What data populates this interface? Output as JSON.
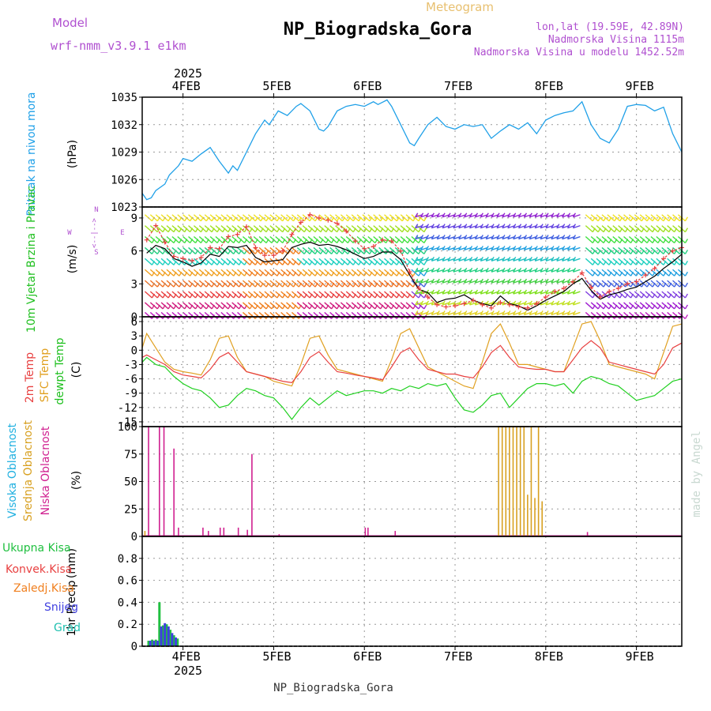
{
  "header": {
    "meteogram_label": "Meteogram",
    "model_label": "Model",
    "model_value": "wrf-nmm_v3.9.1 e1km",
    "station_title": "NP_Biogradska_Gora",
    "lonlat": "lon,lat (19.59E, 42.89N)",
    "elevation": "Nadmorska Visina 1115m",
    "model_elevation": "Nadmorska Visina u modelu 1452.52m",
    "footer_station": "NP_Biogradska_Gora",
    "credit": "made by Angel"
  },
  "colors": {
    "pressure": "#1fa0e8",
    "temp_2m": "#e84040",
    "temp_sfc": "#e0a020",
    "dewpoint": "#20d020",
    "cloud_high": "#20b0e0",
    "cloud_mid": "#d8a020",
    "cloud_low": "#d02090",
    "precip_total": "#20c040",
    "precip_conv": "#e84040",
    "precip_frz": "#f08020",
    "precip_snow": "#4040e0",
    "precip_grad": "#20c0b0",
    "wind_speed": "#000000",
    "wind_gust": "#e84040",
    "purple": "#b050d0"
  },
  "chart_data": [
    {
      "type": "line",
      "panel": "pressure",
      "ylabel": "Pritisak na nivou mora",
      "unit": "(hPa)",
      "ylim": [
        1023,
        1035
      ],
      "yticks": [
        "1023",
        "1026",
        "1029",
        "1032",
        "1035"
      ],
      "xlim": [
        3.55,
        9.5
      ],
      "top_axis_year": "2025",
      "x_tick_labels": [
        "4FEB",
        "5FEB",
        "6FEB",
        "7FEB",
        "8FEB",
        "9FEB"
      ],
      "grid": true,
      "series": [
        {
          "x": [
            3.55,
            3.6,
            3.65,
            3.7,
            3.8,
            3.85,
            3.95,
            4.0,
            4.1,
            4.2,
            4.3,
            4.4,
            4.5,
            4.55,
            4.6,
            4.7,
            4.8,
            4.9,
            4.95,
            5.05,
            5.15,
            5.25,
            5.3,
            5.4,
            5.5,
            5.55,
            5.6,
            5.7,
            5.8,
            5.9,
            6.0,
            6.1,
            6.15,
            6.25,
            6.3,
            6.4,
            6.5,
            6.55,
            6.6,
            6.7,
            6.8,
            6.9,
            7.0,
            7.1,
            7.2,
            7.3,
            7.4,
            7.5,
            7.6,
            7.7,
            7.8,
            7.9,
            8.0,
            8.1,
            8.2,
            8.3,
            8.4,
            8.5,
            8.6,
            8.7,
            8.8,
            8.9,
            9.0,
            9.1,
            9.2,
            9.3,
            9.4,
            9.5
          ],
          "values": [
            1024.5,
            1023.8,
            1024.0,
            1024.8,
            1025.5,
            1026.5,
            1027.5,
            1028.3,
            1028.0,
            1028.8,
            1029.5,
            1028.0,
            1026.7,
            1027.5,
            1027.0,
            1029.0,
            1031.0,
            1032.5,
            1032.0,
            1033.5,
            1033.0,
            1034.0,
            1034.3,
            1033.5,
            1031.5,
            1031.3,
            1031.8,
            1033.5,
            1034.0,
            1034.2,
            1034.0,
            1034.5,
            1034.2,
            1034.7,
            1034.0,
            1032.0,
            1030.0,
            1029.7,
            1030.5,
            1032.0,
            1032.8,
            1031.8,
            1031.5,
            1032.0,
            1031.8,
            1032.0,
            1030.5,
            1031.3,
            1032.0,
            1031.5,
            1032.2,
            1031.0,
            1032.5,
            1033.0,
            1033.3,
            1033.5,
            1034.5,
            1032.0,
            1030.5,
            1030.0,
            1031.5,
            1034.0,
            1034.2,
            1034.1,
            1033.5,
            1033.9,
            1031.0,
            1029.0
          ]
        }
      ]
    },
    {
      "type": "line",
      "panel": "wind",
      "ylabel": "10m Vjetar Brzina i Pravac",
      "unit": "(m/s)",
      "ylim": [
        0,
        10
      ],
      "yticks": [
        "0",
        "3",
        "6",
        "9"
      ],
      "direction_key": [
        "N",
        "<--|-->",
        "S",
        "W",
        "E",
        "α"
      ],
      "grid": true,
      "series": [
        {
          "name": "speed",
          "x": [
            3.6,
            3.7,
            3.8,
            3.9,
            4.0,
            4.1,
            4.2,
            4.3,
            4.4,
            4.5,
            4.6,
            4.7,
            4.8,
            4.9,
            5.0,
            5.1,
            5.2,
            5.3,
            5.4,
            5.5,
            5.6,
            5.7,
            5.8,
            5.9,
            6.0,
            6.1,
            6.2,
            6.3,
            6.4,
            6.5,
            6.6,
            6.7,
            6.8,
            6.9,
            7.0,
            7.1,
            7.2,
            7.3,
            7.4,
            7.5,
            7.6,
            7.7,
            7.8,
            7.9,
            8.0,
            8.1,
            8.2,
            8.3,
            8.4,
            8.5,
            8.6,
            8.7,
            8.8,
            8.9,
            9.0,
            9.1,
            9.2,
            9.3,
            9.4,
            9.5
          ],
          "values": [
            5.8,
            6.5,
            6.2,
            5.3,
            5.0,
            4.6,
            4.9,
            5.7,
            5.5,
            6.4,
            6.3,
            6.5,
            5.4,
            5.0,
            5.1,
            5.2,
            6.3,
            6.6,
            6.8,
            6.5,
            6.6,
            6.4,
            6.1,
            5.7,
            5.3,
            5.5,
            5.9,
            5.9,
            5.2,
            3.8,
            2.5,
            2.2,
            1.3,
            1.6,
            1.7,
            2.0,
            1.5,
            1.2,
            1.0,
            1.9,
            1.2,
            1.0,
            0.6,
            1.0,
            1.5,
            1.9,
            2.3,
            3.0,
            3.5,
            2.4,
            1.6,
            2.0,
            2.2,
            2.5,
            2.7,
            3.2,
            3.7,
            4.4,
            5.0,
            5.7
          ]
        },
        {
          "name": "gust",
          "x": [
            3.6,
            3.7,
            3.8,
            3.9,
            4.0,
            4.1,
            4.2,
            4.3,
            4.4,
            4.5,
            4.6,
            4.7,
            4.8,
            4.9,
            5.0,
            5.1,
            5.2,
            5.3,
            5.4,
            5.5,
            5.6,
            5.7,
            5.8,
            5.9,
            6.0,
            6.1,
            6.2,
            6.3,
            6.4,
            6.5,
            6.6,
            6.7,
            6.8,
            6.9,
            7.0,
            7.1,
            7.2,
            7.3,
            7.4,
            7.5,
            7.6,
            7.7,
            7.8,
            7.9,
            8.0,
            8.1,
            8.2,
            8.3,
            8.4,
            8.5,
            8.6,
            8.7,
            8.8,
            8.9,
            9.0,
            9.1,
            9.2,
            9.3,
            9.4,
            9.5
          ],
          "values": [
            7.0,
            8.3,
            6.8,
            5.5,
            5.3,
            5.1,
            5.4,
            6.3,
            6.2,
            7.3,
            7.5,
            8.2,
            6.3,
            5.6,
            5.6,
            6.0,
            7.5,
            8.6,
            9.3,
            9.0,
            8.8,
            8.5,
            7.8,
            6.9,
            6.2,
            6.4,
            7.0,
            6.9,
            6.0,
            4.1,
            2.6,
            1.8,
            1.1,
            0.9,
            1.0,
            1.2,
            1.5,
            1.1,
            0.8,
            1.3,
            1.1,
            0.9,
            0.8,
            1.2,
            1.8,
            2.3,
            2.6,
            3.2,
            4.0,
            2.7,
            1.8,
            2.3,
            2.6,
            3.0,
            3.2,
            3.8,
            4.4,
            5.3,
            6.0,
            6.3
          ]
        }
      ]
    },
    {
      "type": "line",
      "panel": "temperature",
      "ylabel_2m": "2m Temp",
      "ylabel_sfc": "SFC Temp",
      "ylabel_dew": "dewpt Temp",
      "unit": "(C)",
      "ylim": [
        -16,
        7
      ],
      "yticks": [
        "-15",
        "-12",
        "-9",
        "-6",
        "-3",
        "0",
        "3",
        "6"
      ],
      "grid": true,
      "series": [
        {
          "name": "2m Temp",
          "x": [
            3.55,
            3.6,
            3.7,
            3.8,
            3.9,
            4.0,
            4.1,
            4.2,
            4.3,
            4.4,
            4.5,
            4.6,
            4.7,
            4.8,
            4.9,
            5.0,
            5.1,
            5.2,
            5.3,
            5.4,
            5.5,
            5.6,
            5.7,
            5.8,
            5.9,
            6.0,
            6.1,
            6.2,
            6.3,
            6.4,
            6.5,
            6.6,
            6.7,
            6.8,
            6.9,
            7.0,
            7.1,
            7.2,
            7.3,
            7.4,
            7.5,
            7.6,
            7.7,
            7.8,
            7.9,
            8.0,
            8.1,
            8.2,
            8.3,
            8.4,
            8.5,
            8.6,
            8.7,
            8.8,
            8.9,
            9.0,
            9.1,
            9.2,
            9.3,
            9.4,
            9.5
          ],
          "values": [
            -1.5,
            -1.0,
            -2.0,
            -3.0,
            -4.5,
            -5.2,
            -5.5,
            -5.8,
            -4.0,
            -1.5,
            -0.5,
            -2.5,
            -4.5,
            -5.0,
            -5.5,
            -6.0,
            -6.5,
            -6.8,
            -4.5,
            -1.5,
            -0.3,
            -2.5,
            -4.5,
            -4.8,
            -5.2,
            -5.5,
            -5.8,
            -6.2,
            -3.5,
            -0.5,
            0.5,
            -2.0,
            -4.0,
            -4.5,
            -5.0,
            -5.0,
            -5.5,
            -5.8,
            -3.5,
            -0.5,
            1.0,
            -1.5,
            -3.5,
            -3.8,
            -4.0,
            -4.0,
            -4.5,
            -4.5,
            -2.0,
            0.5,
            2.0,
            0.5,
            -2.5,
            -3.0,
            -3.5,
            -4.0,
            -4.5,
            -5.0,
            -3.0,
            0.5,
            1.5
          ]
        },
        {
          "name": "SFC Temp",
          "x": [
            3.55,
            3.6,
            3.7,
            3.8,
            3.9,
            4.0,
            4.1,
            4.2,
            4.3,
            4.4,
            4.5,
            4.6,
            4.7,
            4.8,
            4.9,
            5.0,
            5.1,
            5.2,
            5.3,
            5.4,
            5.5,
            5.6,
            5.7,
            5.8,
            5.9,
            6.0,
            6.1,
            6.2,
            6.3,
            6.4,
            6.5,
            6.6,
            6.7,
            6.8,
            6.9,
            7.0,
            7.1,
            7.2,
            7.3,
            7.4,
            7.5,
            7.6,
            7.7,
            7.8,
            7.9,
            8.0,
            8.1,
            8.2,
            8.3,
            8.4,
            8.5,
            8.6,
            8.7,
            8.8,
            8.9,
            9.0,
            9.1,
            9.2,
            9.3,
            9.4,
            9.5
          ],
          "values": [
            0.5,
            3.5,
            0.5,
            -2.5,
            -4.0,
            -4.5,
            -4.8,
            -5.2,
            -2.0,
            2.5,
            3.0,
            -1.5,
            -4.5,
            -5.0,
            -5.5,
            -6.5,
            -7.0,
            -7.5,
            -3.0,
            2.5,
            3.0,
            -1.0,
            -4.0,
            -4.5,
            -5.0,
            -5.5,
            -6.0,
            -6.5,
            -2.0,
            3.5,
            4.5,
            0.5,
            -3.5,
            -4.5,
            -5.5,
            -6.5,
            -7.5,
            -8.0,
            -2.5,
            3.5,
            5.5,
            1.5,
            -3.0,
            -3.0,
            -3.5,
            -4.0,
            -4.5,
            -4.5,
            0.5,
            5.5,
            6.0,
            2.0,
            -3.0,
            -3.5,
            -4.0,
            -4.5,
            -5.0,
            -6.0,
            -0.5,
            5.0,
            5.5
          ]
        },
        {
          "name": "dewpt Temp",
          "x": [
            3.55,
            3.6,
            3.7,
            3.8,
            3.9,
            4.0,
            4.1,
            4.2,
            4.3,
            4.4,
            4.5,
            4.6,
            4.7,
            4.8,
            4.9,
            5.0,
            5.1,
            5.2,
            5.3,
            5.4,
            5.5,
            5.6,
            5.7,
            5.8,
            5.9,
            6.0,
            6.1,
            6.2,
            6.3,
            6.4,
            6.5,
            6.6,
            6.7,
            6.8,
            6.9,
            7.0,
            7.1,
            7.2,
            7.3,
            7.4,
            7.5,
            7.6,
            7.7,
            7.8,
            7.9,
            8.0,
            8.1,
            8.2,
            8.3,
            8.4,
            8.5,
            8.6,
            8.7,
            8.8,
            8.9,
            9.0,
            9.1,
            9.2,
            9.3,
            9.4,
            9.5
          ],
          "values": [
            -2.5,
            -1.5,
            -3.0,
            -3.5,
            -5.5,
            -7.0,
            -8.0,
            -8.5,
            -10.0,
            -12.0,
            -11.5,
            -9.5,
            -8.0,
            -8.5,
            -9.5,
            -10.0,
            -12.0,
            -14.5,
            -12.0,
            -10.0,
            -11.5,
            -10.0,
            -8.5,
            -9.5,
            -9.0,
            -8.5,
            -8.5,
            -9.0,
            -8.0,
            -8.5,
            -7.5,
            -8.0,
            -7.0,
            -7.5,
            -7.0,
            -10.0,
            -12.5,
            -13.0,
            -11.5,
            -9.5,
            -9.0,
            -12.0,
            -10.0,
            -8.0,
            -7.0,
            -7.0,
            -7.5,
            -7.0,
            -9.0,
            -6.5,
            -5.5,
            -6.0,
            -7.0,
            -7.5,
            -9.0,
            -10.5,
            -10.0,
            -9.5,
            -8.0,
            -6.5,
            -6.0
          ]
        }
      ]
    },
    {
      "type": "bar",
      "panel": "cloud",
      "ylabel_high": "Visoka Oblacnost",
      "ylabel_mid": "Srednja Oblacnost",
      "ylabel_low": "Niska Oblacnost",
      "unit": "(%)",
      "ylim": [
        0,
        100
      ],
      "yticks": [
        "0",
        "25",
        "50",
        "75",
        "100"
      ],
      "grid": true,
      "series": [
        {
          "name": "Niska Oblacnost",
          "x": [
            3.62,
            3.74,
            3.79,
            3.9,
            3.95,
            4.22,
            4.28,
            4.41,
            4.45,
            4.61,
            4.71,
            4.76,
            5.06,
            6.01,
            6.04,
            6.34,
            8.46
          ],
          "values": [
            100,
            100,
            100,
            80,
            8,
            8,
            5,
            8,
            8,
            8,
            6,
            75,
            2,
            8,
            8,
            5,
            4
          ]
        },
        {
          "name": "Srednja Oblacnost",
          "x": [
            3.58,
            7.48,
            7.52,
            7.56,
            7.6,
            7.64,
            7.68,
            7.72,
            7.76,
            7.8,
            7.84,
            7.88,
            7.92,
            7.96
          ],
          "values": [
            5,
            100,
            100,
            100,
            100,
            100,
            100,
            100,
            100,
            38,
            100,
            35,
            100,
            32
          ]
        }
      ]
    },
    {
      "type": "bar",
      "panel": "precip",
      "ylabel": "1hr Precip",
      "unit": "(mm)",
      "ylim": [
        0,
        1
      ],
      "yticks": [
        "0",
        "0.2",
        "0.4",
        "0.6",
        "0.8"
      ],
      "legend": [
        "Ukupna Kisa",
        "Konvek.Kisa",
        "Zaledj.Kisa",
        "Snijeg",
        "Grad"
      ],
      "bottom_axis_year": "2025",
      "grid": true,
      "series": [
        {
          "name": "Ukupna Kisa",
          "x": [
            3.62,
            3.66,
            3.7,
            3.74,
            3.78,
            3.82,
            3.86,
            3.9,
            3.94
          ],
          "values": [
            0.05,
            0.06,
            0.06,
            0.4,
            0.19,
            0.2,
            0.15,
            0.1,
            0.07
          ]
        },
        {
          "name": "Snijeg",
          "x": [
            3.64,
            3.68,
            3.72,
            3.76,
            3.8,
            3.84,
            3.88,
            3.92
          ],
          "values": [
            0.05,
            0.05,
            0.05,
            0.18,
            0.21,
            0.18,
            0.12,
            0.08
          ]
        }
      ]
    }
  ]
}
